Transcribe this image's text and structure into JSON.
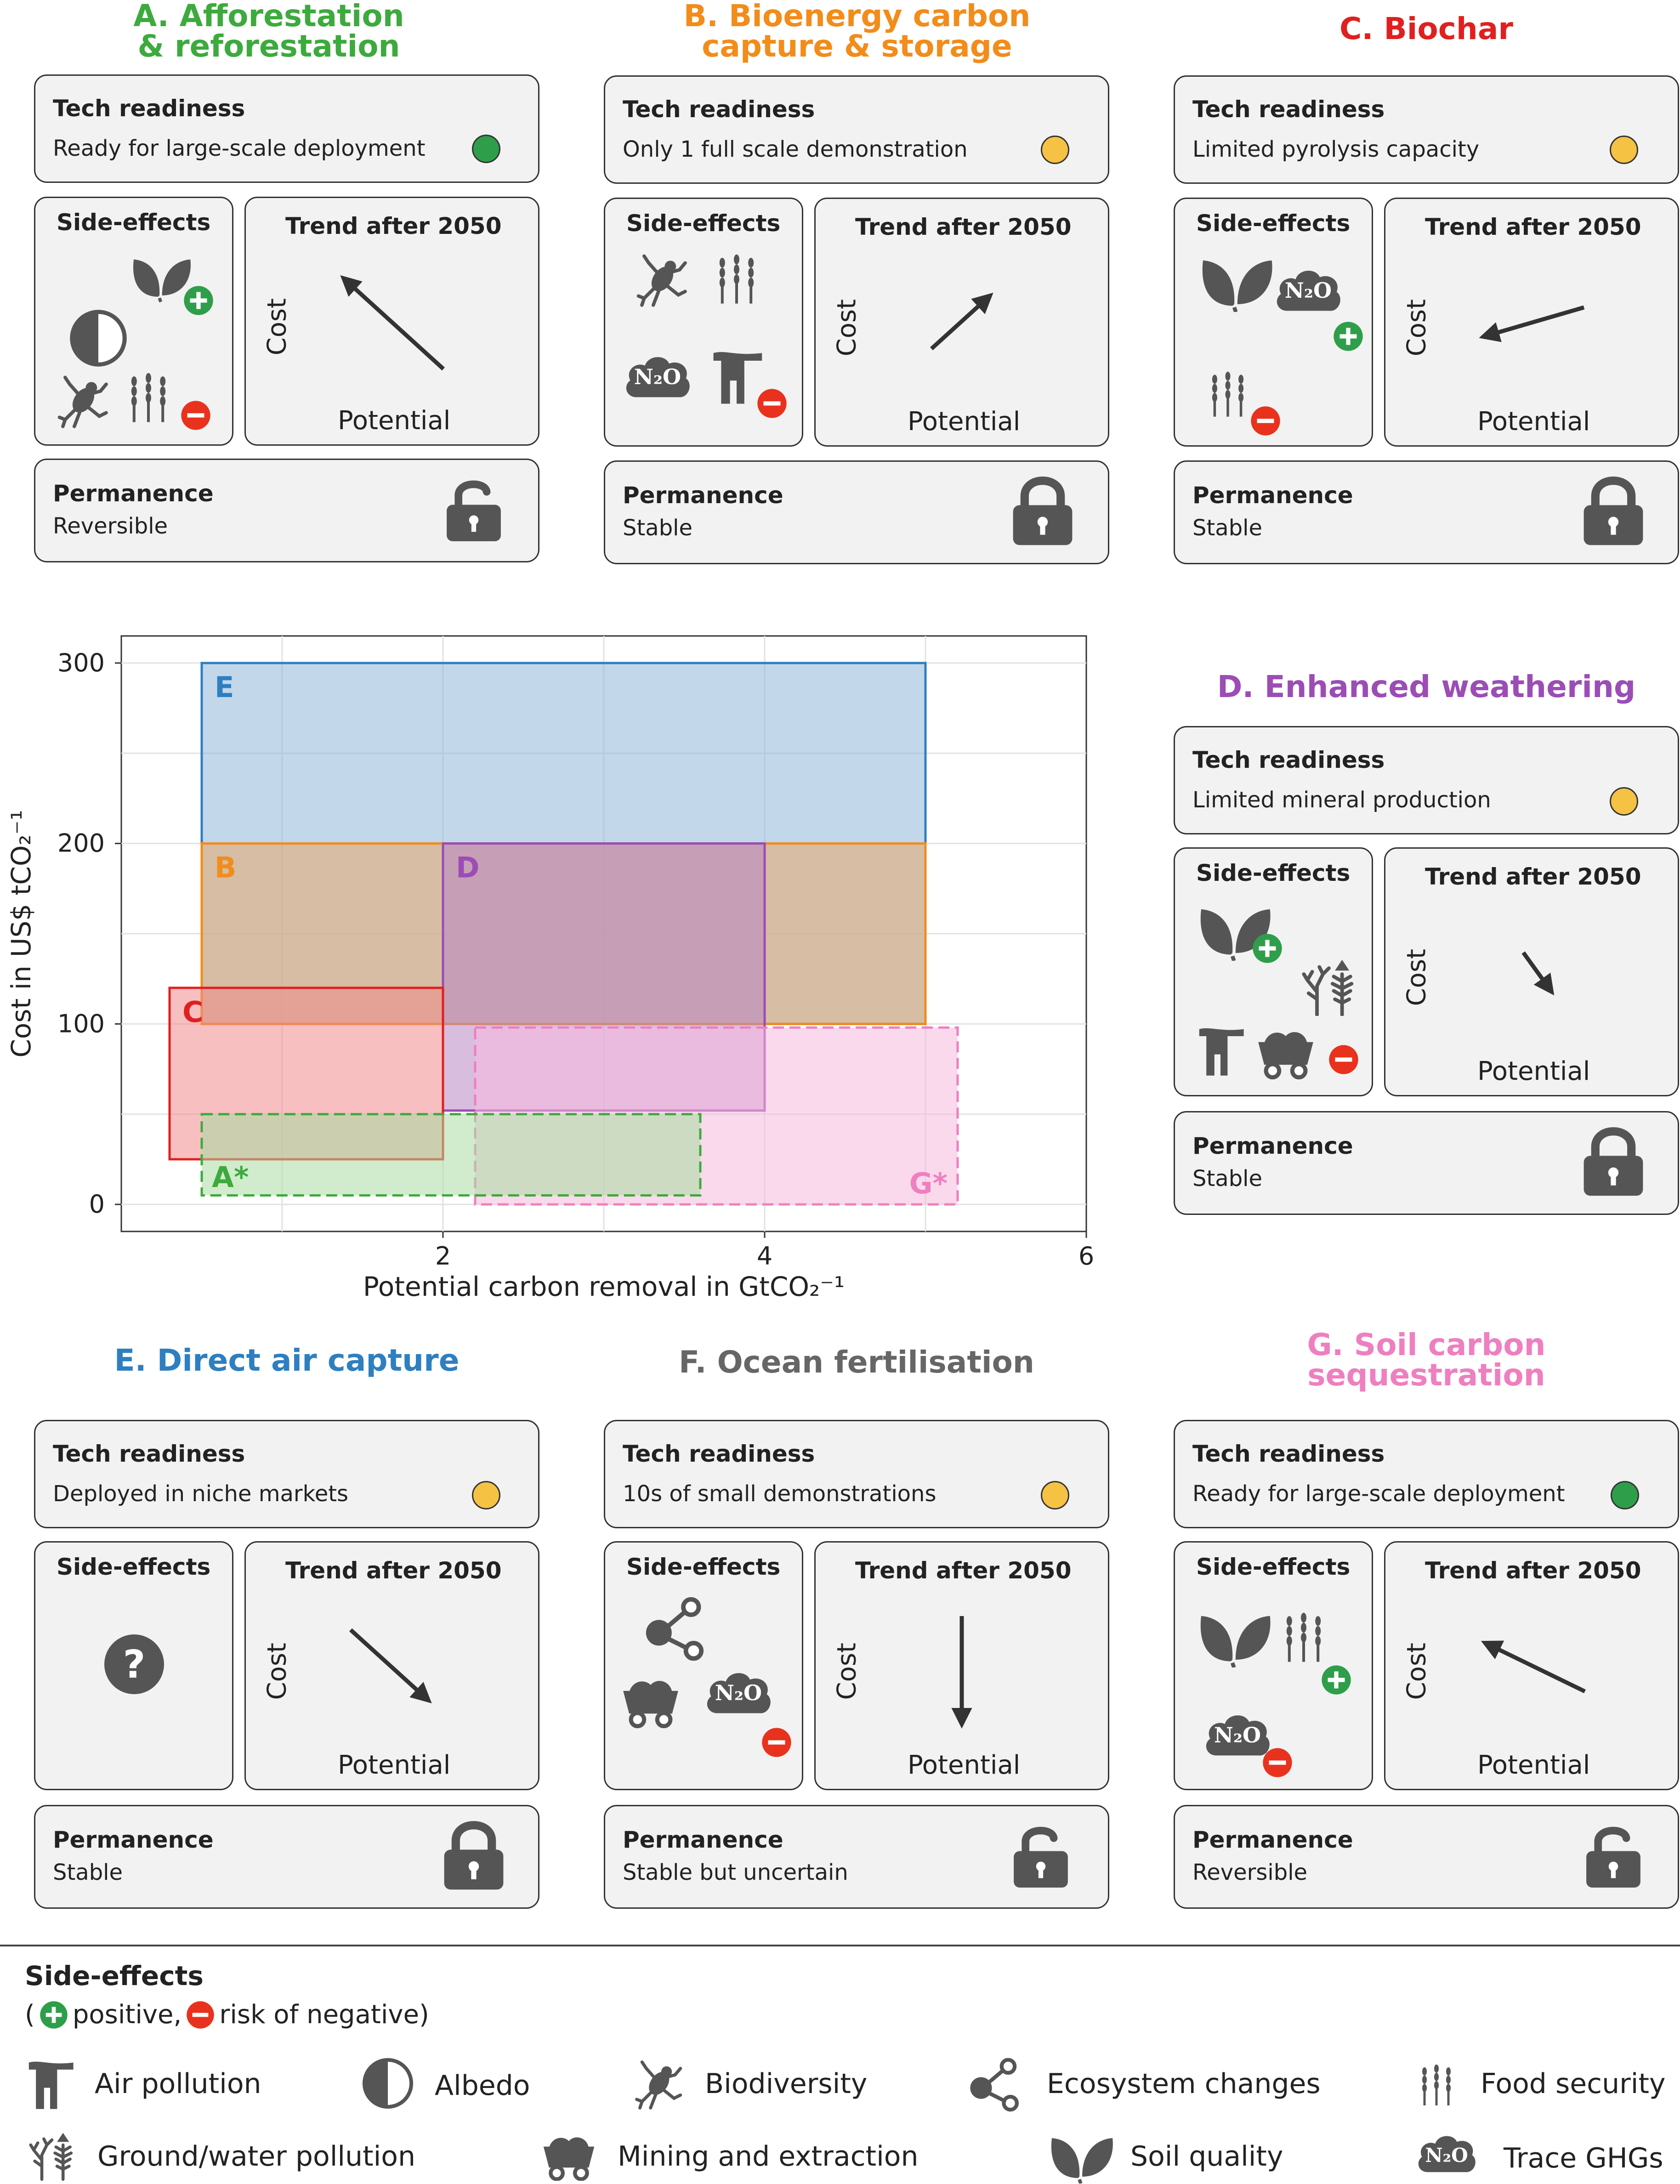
{
  "labels": {
    "tech_readiness": "Tech readiness",
    "side_effects": "Side-effects",
    "trend_after_2050": "Trend after 2050",
    "permanence": "Permanence",
    "cost": "Cost",
    "potential": "Potential"
  },
  "panels": {
    "A": {
      "title_line1": "A. Afforestation",
      "title_line2": "& reforestation",
      "color": "#3daa3d",
      "readiness": "Ready for large-scale deployment",
      "readiness_color": "#2e9e4a",
      "permanence": "Reversible"
    },
    "B": {
      "title_line1": "B. Bioenergy carbon",
      "title_line2": "capture & storage",
      "color": "#f28c1a",
      "readiness": "Only 1 full scale demonstration",
      "readiness_color": "#f5c244",
      "permanence": "Stable"
    },
    "C": {
      "title_line1": "C. Biochar",
      "color": "#e02020",
      "readiness": "Limited pyrolysis capacity",
      "readiness_color": "#f5c244",
      "permanence": "Stable"
    },
    "D": {
      "title_line1": "D. Enhanced weathering",
      "color": "#9b4db5",
      "readiness": "Limited mineral production",
      "readiness_color": "#f5c244",
      "permanence": "Stable"
    },
    "E": {
      "title_line1": "E. Direct air capture",
      "color": "#2e7fc0",
      "readiness": "Deployed in niche markets",
      "readiness_color": "#f5c244",
      "permanence": "Stable"
    },
    "F": {
      "title_line1": "F. Ocean fertilisation",
      "color": "#666666",
      "readiness": "10s of small demonstrations",
      "readiness_color": "#f5c244",
      "permanence": "Stable but uncertain"
    },
    "G": {
      "title_line1": "G. Soil carbon",
      "title_line2": "sequestration",
      "color": "#ee7fc0",
      "readiness": "Ready for large-scale deployment",
      "readiness_color": "#2e9e4a",
      "permanence": "Reversible"
    }
  },
  "icon_text": {
    "n2o": "N₂O",
    "question": "?"
  },
  "chart_data": {
    "type": "box-range",
    "title": "",
    "xlabel": "Potential carbon removal in GtCO₂⁻¹",
    "ylabel": "Cost in US$ tCO₂⁻¹",
    "xlim": [
      0,
      6
    ],
    "ylim": [
      -15,
      315
    ],
    "xticks": [
      "2",
      "4",
      "6"
    ],
    "yticks": [
      "0",
      "100",
      "200",
      "300"
    ],
    "xtick_values": [
      2,
      4,
      6
    ],
    "ytick_values": [
      0,
      100,
      200,
      300
    ],
    "grid": true,
    "series": [
      {
        "name": "E",
        "label": "E",
        "x0": 0.5,
        "x1": 5.0,
        "y0": 100,
        "y1": 300,
        "color": "#2e7fc0",
        "fill": "#8fb7d9",
        "dashed": false
      },
      {
        "name": "B",
        "label": "B",
        "x0": 0.5,
        "x1": 5.0,
        "y0": 100,
        "y1": 200,
        "color": "#f28c1a",
        "fill": "#e8a86a",
        "dashed": false
      },
      {
        "name": "D",
        "label": "D",
        "x0": 2.0,
        "x1": 4.0,
        "y0": 52,
        "y1": 200,
        "color": "#9b4db5",
        "fill": "#b987c5",
        "dashed": false
      },
      {
        "name": "C",
        "label": "C",
        "x0": 0.3,
        "x1": 2.0,
        "y0": 25,
        "y1": 120,
        "color": "#e02020",
        "fill": "#f08a8a",
        "dashed": false
      },
      {
        "name": "G*",
        "label": "G*",
        "x0": 2.2,
        "x1": 5.2,
        "y0": 0,
        "y1": 98,
        "color": "#ee7fc0",
        "fill": "#f7b9dc",
        "dashed": true
      },
      {
        "name": "A*",
        "label": "A*",
        "x0": 0.5,
        "x1": 3.6,
        "y0": 5,
        "y1": 50,
        "color": "#3daa3d",
        "fill": "#a9dca3",
        "dashed": true
      }
    ]
  },
  "legend": {
    "title": "Side-effects",
    "note_open": "(",
    "note_positive": "positive,",
    "note_negative": "risk of negative)",
    "items": [
      "Air pollution",
      "Albedo",
      "Biodiversity",
      "Ecosystem changes",
      "Food security",
      "Ground/water pollution",
      "Mining and extraction",
      "Soil quality",
      "Trace GHGs"
    ]
  }
}
